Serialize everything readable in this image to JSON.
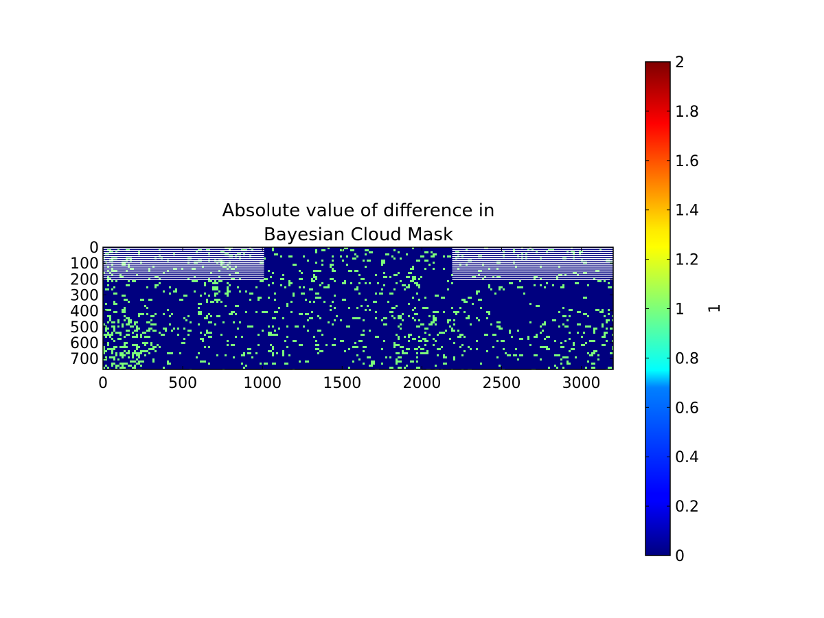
{
  "chart_data": {
    "type": "heatmap",
    "title_lines": [
      "Absolute value of difference in",
      "Bayesian Cloud Mask"
    ],
    "xlim": [
      0,
      3200
    ],
    "ylim": [
      768,
      0
    ],
    "x_ticks": [
      0,
      500,
      1000,
      1500,
      2000,
      2500,
      3000
    ],
    "x_tick_labels": [
      "0",
      "500",
      "1000",
      "1500",
      "2000",
      "2500",
      "3000"
    ],
    "y_ticks": [
      0,
      100,
      200,
      300,
      400,
      500,
      600,
      700
    ],
    "y_tick_labels": [
      "0",
      "100",
      "200",
      "300",
      "400",
      "500",
      "600",
      "700"
    ],
    "values_present": [
      0,
      1
    ],
    "background_value": 0,
    "speckle_value": 1,
    "colormap": "jet",
    "colorbar": {
      "label": "1",
      "range": [
        0,
        2
      ],
      "ticks": [
        0,
        0.2,
        0.4,
        0.6,
        0.8,
        1,
        1.2,
        1.4,
        1.6,
        1.8,
        2
      ],
      "tick_labels": [
        "0",
        "0.2",
        "0.4",
        "0.6",
        "0.8",
        "1",
        "1.2",
        "1.4",
        "1.6",
        "1.8",
        "2"
      ]
    },
    "no_data_stripes": {
      "x_ranges": [
        [
          0,
          1010
        ],
        [
          2190,
          3200
        ]
      ],
      "y_range": [
        0,
        200
      ],
      "color": "#ffffff"
    },
    "colors": {
      "zero": "#00007f",
      "one": "#7dff7a",
      "two": "#7f0000"
    }
  }
}
